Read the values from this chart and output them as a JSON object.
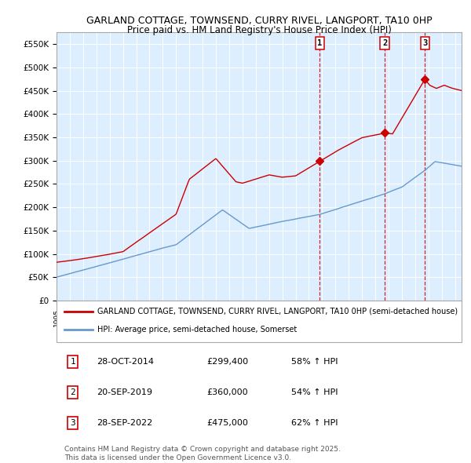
{
  "title": "GARLAND COTTAGE, TOWNSEND, CURRY RIVEL, LANGPORT, TA10 0HP",
  "subtitle": "Price paid vs. HM Land Registry's House Price Index (HPI)",
  "ylim": [
    0,
    575000
  ],
  "yticks": [
    0,
    50000,
    100000,
    150000,
    200000,
    250000,
    300000,
    350000,
    400000,
    450000,
    500000,
    550000
  ],
  "ytick_labels": [
    "£0",
    "£50K",
    "£100K",
    "£150K",
    "£200K",
    "£250K",
    "£300K",
    "£350K",
    "£400K",
    "£450K",
    "£500K",
    "£550K"
  ],
  "legend_line1": "GARLAND COTTAGE, TOWNSEND, CURRY RIVEL, LANGPORT, TA10 0HP (semi-detached house)",
  "legend_line2": "HPI: Average price, semi-detached house, Somerset",
  "sale1_date": "28-OCT-2014",
  "sale1_price": "£299,400",
  "sale1_hpi": "58% ↑ HPI",
  "sale2_date": "20-SEP-2019",
  "sale2_price": "£360,000",
  "sale2_hpi": "54% ↑ HPI",
  "sale3_date": "28-SEP-2022",
  "sale3_price": "£475,000",
  "sale3_hpi": "62% ↑ HPI",
  "footer_line1": "Contains HM Land Registry data © Crown copyright and database right 2025.",
  "footer_line2": "This data is licensed under the Open Government Licence v3.0.",
  "red_color": "#cc0000",
  "blue_color": "#6699cc",
  "bg_color": "#ddeeff",
  "sale1_x": 2014.83,
  "sale2_x": 2019.72,
  "sale3_x": 2022.74,
  "sale1_y": 299400,
  "sale2_y": 360000,
  "sale3_y": 475000,
  "xmin": 1995,
  "xmax": 2025.5
}
